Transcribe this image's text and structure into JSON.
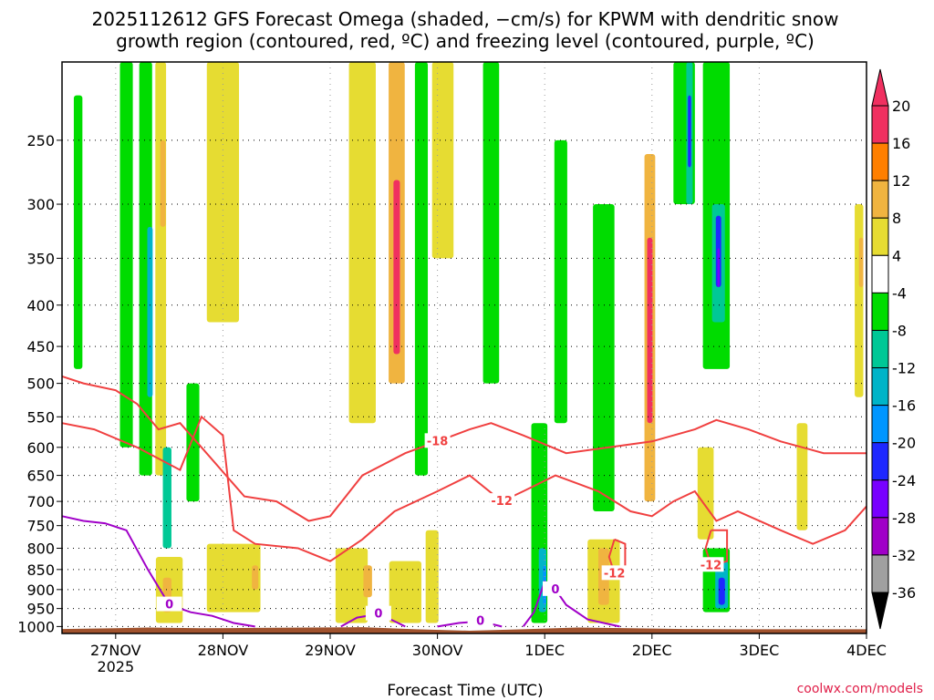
{
  "chart_data": {
    "type": "heatmap",
    "title_line1": "2025112612 GFS Forecast Omega (shaded, −cm/s) for KPWM with dendritic snow",
    "title_line2": "growth region (contoured, red, ºC) and freezing level (contoured, purple, ºC)",
    "xlabel": "Forecast Time (UTC)",
    "ylabel": "",
    "credit": "coolwx.com/models",
    "x_ticks": [
      {
        "day": 0,
        "label": "27NOV",
        "sublabel": "2025"
      },
      {
        "day": 1,
        "label": "28NOV",
        "sublabel": ""
      },
      {
        "day": 2,
        "label": "29NOV",
        "sublabel": ""
      },
      {
        "day": 3,
        "label": "30NOV",
        "sublabel": ""
      },
      {
        "day": 4,
        "label": "1DEC",
        "sublabel": ""
      },
      {
        "day": 5,
        "label": "2DEC",
        "sublabel": ""
      },
      {
        "day": 6,
        "label": "3DEC",
        "sublabel": ""
      },
      {
        "day": 7,
        "label": "4DEC",
        "sublabel": ""
      }
    ],
    "x_range_days": [
      -0.5,
      7.0
    ],
    "y_ticks": [
      "250",
      "300",
      "350",
      "400",
      "450",
      "500",
      "550",
      "600",
      "650",
      "700",
      "750",
      "800",
      "850",
      "900",
      "950",
      "1000"
    ],
    "y_range_hpa": [
      1020,
      200
    ],
    "colorbar": {
      "labels": [
        "20",
        "16",
        "12",
        "8",
        "4",
        "-4",
        "-8",
        "-12",
        "-16",
        "-20",
        "-24",
        "-28",
        "-32",
        "-36"
      ],
      "colors": [
        "#f03060",
        "#ff7f00",
        "#f0b440",
        "#e6dc32",
        "#ffffff",
        "#00dc00",
        "#00c896",
        "#00b4c8",
        "#0096ff",
        "#1e28ff",
        "#7800ff",
        "#a000c8",
        "#a0a0a0",
        "#000000"
      ]
    },
    "ground_color": "#a0522d",
    "cells": [
      {
        "day": -0.35,
        "w": 0.08,
        "top": 220,
        "bot": 480,
        "c": "#00dc00"
      },
      {
        "day": 0.1,
        "w": 0.12,
        "top": 200,
        "bot": 600,
        "c": "#00dc00"
      },
      {
        "day": 0.28,
        "w": 0.12,
        "top": 200,
        "bot": 650,
        "c": "#00dc00"
      },
      {
        "day": 0.32,
        "w": 0.05,
        "top": 320,
        "bot": 520,
        "c": "#00b4c8"
      },
      {
        "day": 0.42,
        "w": 0.1,
        "top": 200,
        "bot": 650,
        "c": "#e6dc32"
      },
      {
        "day": 0.44,
        "w": 0.05,
        "top": 250,
        "bot": 320,
        "c": "#f0b440"
      },
      {
        "day": 0.48,
        "w": 0.08,
        "top": 600,
        "bot": 800,
        "c": "#00c896"
      },
      {
        "day": 0.72,
        "w": 0.12,
        "top": 500,
        "bot": 700,
        "c": "#00dc00"
      },
      {
        "day": 0.5,
        "w": 0.25,
        "top": 820,
        "bot": 990,
        "c": "#e6dc32"
      },
      {
        "day": 0.48,
        "w": 0.08,
        "top": 870,
        "bot": 960,
        "c": "#f0b440"
      },
      {
        "day": 1.1,
        "w": 0.5,
        "top": 790,
        "bot": 960,
        "c": "#e6dc32"
      },
      {
        "day": 1.3,
        "w": 0.06,
        "top": 840,
        "bot": 900,
        "c": "#f0b440"
      },
      {
        "day": 1.0,
        "w": 0.3,
        "top": 200,
        "bot": 420,
        "c": "#e6dc32"
      },
      {
        "day": 2.2,
        "w": 0.3,
        "top": 800,
        "bot": 990,
        "c": "#e6dc32"
      },
      {
        "day": 2.35,
        "w": 0.08,
        "top": 840,
        "bot": 920,
        "c": "#f0b440"
      },
      {
        "day": 2.7,
        "w": 0.3,
        "top": 830,
        "bot": 990,
        "c": "#e6dc32"
      },
      {
        "day": 2.3,
        "w": 0.25,
        "top": 200,
        "bot": 560,
        "c": "#e6dc32"
      },
      {
        "day": 2.62,
        "w": 0.15,
        "top": 200,
        "bot": 500,
        "c": "#f0b440"
      },
      {
        "day": 2.62,
        "w": 0.06,
        "top": 280,
        "bot": 460,
        "c": "#f03060"
      },
      {
        "day": 2.85,
        "w": 0.12,
        "top": 200,
        "bot": 650,
        "c": "#00dc00"
      },
      {
        "day": 2.95,
        "w": 0.12,
        "top": 760,
        "bot": 990,
        "c": "#e6dc32"
      },
      {
        "day": 3.05,
        "w": 0.2,
        "top": 200,
        "bot": 350,
        "c": "#e6dc32"
      },
      {
        "day": 3.5,
        "w": 0.15,
        "top": 200,
        "bot": 500,
        "c": "#00dc00"
      },
      {
        "day": 3.95,
        "w": 0.15,
        "top": 560,
        "bot": 990,
        "c": "#00dc00"
      },
      {
        "day": 3.98,
        "w": 0.07,
        "top": 800,
        "bot": 960,
        "c": "#00b4c8"
      },
      {
        "day": 4.0,
        "w": 0.03,
        "top": 840,
        "bot": 940,
        "c": "#0096ff"
      },
      {
        "day": 4.15,
        "w": 0.12,
        "top": 250,
        "bot": 560,
        "c": "#00dc00"
      },
      {
        "day": 4.55,
        "w": 0.2,
        "top": 300,
        "bot": 720,
        "c": "#00dc00"
      },
      {
        "day": 4.55,
        "w": 0.3,
        "top": 780,
        "bot": 990,
        "c": "#e6dc32"
      },
      {
        "day": 4.55,
        "w": 0.1,
        "top": 800,
        "bot": 940,
        "c": "#f0b440"
      },
      {
        "day": 4.98,
        "w": 0.1,
        "top": 260,
        "bot": 700,
        "c": "#f0b440"
      },
      {
        "day": 4.98,
        "w": 0.05,
        "top": 330,
        "bot": 560,
        "c": "#f03060"
      },
      {
        "day": 5.3,
        "w": 0.2,
        "top": 200,
        "bot": 300,
        "c": "#00dc00"
      },
      {
        "day": 5.35,
        "w": 0.06,
        "top": 200,
        "bot": 300,
        "c": "#00c896"
      },
      {
        "day": 5.35,
        "w": 0.03,
        "top": 220,
        "bot": 270,
        "c": "#1e28ff"
      },
      {
        "day": 5.6,
        "w": 0.25,
        "top": 200,
        "bot": 480,
        "c": "#00dc00"
      },
      {
        "day": 5.62,
        "w": 0.12,
        "top": 300,
        "bot": 420,
        "c": "#00c896"
      },
      {
        "day": 5.62,
        "w": 0.05,
        "top": 310,
        "bot": 380,
        "c": "#1e28ff"
      },
      {
        "day": 5.62,
        "w": 0.02,
        "top": 340,
        "bot": 380,
        "c": "#7800ff"
      },
      {
        "day": 5.6,
        "w": 0.25,
        "top": 800,
        "bot": 960,
        "c": "#00dc00"
      },
      {
        "day": 5.65,
        "w": 0.12,
        "top": 830,
        "bot": 950,
        "c": "#00b4c8"
      },
      {
        "day": 5.65,
        "w": 0.06,
        "top": 870,
        "bot": 940,
        "c": "#1e28ff"
      },
      {
        "day": 5.5,
        "w": 0.15,
        "top": 600,
        "bot": 780,
        "c": "#e6dc32"
      },
      {
        "day": 6.4,
        "w": 0.1,
        "top": 560,
        "bot": 760,
        "c": "#e6dc32"
      },
      {
        "day": 6.93,
        "w": 0.08,
        "top": 300,
        "bot": 520,
        "c": "#e6dc32"
      },
      {
        "day": 6.95,
        "w": 0.04,
        "top": 330,
        "bot": 380,
        "c": "#f0b440"
      }
    ],
    "red_contours": [
      {
        "label": "-18",
        "points": [
          [
            -0.5,
            490
          ],
          [
            -0.3,
            500
          ],
          [
            0,
            510
          ],
          [
            0.2,
            530
          ],
          [
            0.4,
            570
          ],
          [
            0.6,
            560
          ],
          [
            0.8,
            600
          ],
          [
            1.2,
            690
          ],
          [
            1.5,
            700
          ],
          [
            1.8,
            740
          ],
          [
            2.0,
            730
          ],
          [
            2.3,
            650
          ],
          [
            2.7,
            610
          ],
          [
            3.0,
            590
          ],
          [
            3.3,
            570
          ],
          [
            3.5,
            560
          ],
          [
            3.8,
            580
          ],
          [
            4.2,
            610
          ],
          [
            4.6,
            600
          ],
          [
            5.0,
            590
          ],
          [
            5.4,
            570
          ],
          [
            5.6,
            555
          ],
          [
            5.9,
            570
          ],
          [
            6.2,
            590
          ],
          [
            6.6,
            610
          ],
          [
            7.0,
            610
          ]
        ]
      },
      {
        "label": "-12",
        "points": [
          [
            -0.5,
            560
          ],
          [
            -0.2,
            570
          ],
          [
            0.2,
            600
          ],
          [
            0.6,
            640
          ],
          [
            0.8,
            550
          ],
          [
            1.0,
            580
          ],
          [
            1.1,
            760
          ],
          [
            1.3,
            790
          ],
          [
            1.7,
            800
          ],
          [
            2.0,
            830
          ],
          [
            2.3,
            780
          ],
          [
            2.6,
            720
          ],
          [
            3.0,
            680
          ],
          [
            3.3,
            650
          ],
          [
            3.6,
            700
          ],
          [
            3.8,
            680
          ],
          [
            4.1,
            650
          ],
          [
            4.5,
            680
          ],
          [
            4.8,
            720
          ],
          [
            5.0,
            730
          ],
          [
            5.2,
            700
          ],
          [
            5.4,
            680
          ],
          [
            5.6,
            740
          ],
          [
            5.8,
            720
          ],
          [
            6.2,
            760
          ],
          [
            6.5,
            790
          ],
          [
            6.8,
            760
          ],
          [
            7.0,
            710
          ]
        ]
      },
      {
        "label": "-12",
        "points": [
          [
            4.65,
            780
          ],
          [
            4.75,
            790
          ],
          [
            4.75,
            860
          ],
          [
            4.65,
            860
          ],
          [
            4.6,
            820
          ],
          [
            4.65,
            780
          ]
        ]
      },
      {
        "label": "-12",
        "points": [
          [
            5.55,
            760
          ],
          [
            5.7,
            760
          ],
          [
            5.7,
            830
          ],
          [
            5.55,
            840
          ],
          [
            5.5,
            800
          ],
          [
            5.55,
            760
          ]
        ]
      }
    ],
    "purple_contours": [
      {
        "label": "0",
        "points": [
          [
            -0.5,
            730
          ],
          [
            -0.3,
            740
          ],
          [
            -0.1,
            745
          ],
          [
            0.1,
            760
          ],
          [
            0.3,
            850
          ],
          [
            0.5,
            940
          ],
          [
            0.7,
            960
          ],
          [
            0.9,
            970
          ],
          [
            1.1,
            990
          ],
          [
            1.3,
            1000
          ]
        ]
      },
      {
        "label": "0",
        "points": [
          [
            2.1,
            1000
          ],
          [
            2.25,
            975
          ],
          [
            2.45,
            965
          ],
          [
            2.6,
            985
          ],
          [
            2.7,
            1000
          ]
        ]
      },
      {
        "label": "0",
        "points": [
          [
            3.0,
            1000
          ],
          [
            3.2,
            990
          ],
          [
            3.4,
            985
          ],
          [
            3.6,
            1000
          ]
        ]
      },
      {
        "label": "0",
        "points": [
          [
            3.8,
            1000
          ],
          [
            3.9,
            960
          ],
          [
            4.0,
            880
          ],
          [
            4.1,
            900
          ],
          [
            4.2,
            940
          ],
          [
            4.4,
            980
          ],
          [
            4.7,
            1000
          ]
        ]
      }
    ],
    "ground_profile": [
      [
        -0.5,
        1007
      ],
      [
        0,
        1005
      ],
      [
        0.3,
        1003
      ],
      [
        0.8,
        1005
      ],
      [
        1.3,
        1004
      ],
      [
        1.8,
        1003
      ],
      [
        2.3,
        1002
      ],
      [
        2.8,
        1008
      ],
      [
        3.3,
        1012
      ],
      [
        3.8,
        1008
      ],
      [
        4.3,
        1003
      ],
      [
        4.8,
        1005
      ],
      [
        5.3,
        1007
      ],
      [
        5.8,
        1008
      ],
      [
        6.3,
        1008
      ],
      [
        7.0,
        1008
      ]
    ]
  }
}
